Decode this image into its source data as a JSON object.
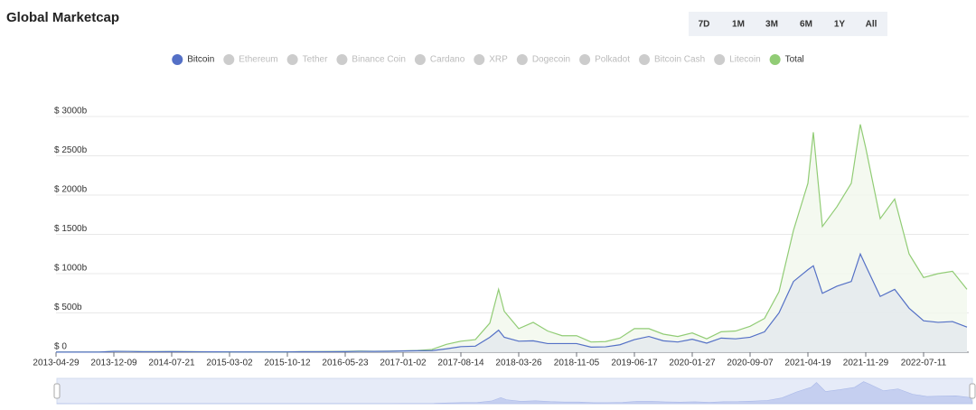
{
  "chart_data": {
    "type": "area",
    "title": "Global Marketcap",
    "range_buttons": [
      "7D",
      "1M",
      "3M",
      "6M",
      "1Y",
      "All"
    ],
    "x": [
      "2013-04-29",
      "2013-06-24",
      "2013-08-19",
      "2013-10-14",
      "2013-12-09",
      "2014-02-03",
      "2014-03-31",
      "2014-05-26",
      "2014-07-21",
      "2014-09-15",
      "2014-11-10",
      "2015-01-05",
      "2015-03-02",
      "2015-04-27",
      "2015-06-22",
      "2015-08-17",
      "2015-10-12",
      "2015-12-07",
      "2016-02-01",
      "2016-03-28",
      "2016-05-23",
      "2016-07-18",
      "2016-09-12",
      "2016-11-07",
      "2017-01-02",
      "2017-02-27",
      "2017-04-24",
      "2017-06-19",
      "2017-08-14",
      "2017-10-09",
      "2017-12-04",
      "2018-01-07",
      "2018-01-29",
      "2018-03-26",
      "2018-05-21",
      "2018-07-16",
      "2018-09-10",
      "2018-11-05",
      "2018-12-31",
      "2019-02-25",
      "2019-04-22",
      "2019-06-17",
      "2019-08-12",
      "2019-10-07",
      "2019-12-02",
      "2020-01-27",
      "2020-03-23",
      "2020-05-18",
      "2020-07-13",
      "2020-09-07",
      "2020-11-02",
      "2020-12-28",
      "2021-02-22",
      "2021-04-19",
      "2021-05-10",
      "2021-06-14",
      "2021-08-09",
      "2021-10-04",
      "2021-11-08",
      "2021-11-29",
      "2022-01-24",
      "2022-03-21",
      "2022-05-16",
      "2022-07-11",
      "2022-09-05",
      "2022-10-31",
      "2022-12-26"
    ],
    "series": [
      {
        "name": "Bitcoin",
        "color": "#5470c6",
        "fill": "#e3e8ee",
        "selected": true,
        "values": [
          1.3,
          1.2,
          1.2,
          1.7,
          10,
          9.5,
          5.5,
          6.5,
          7.5,
          6.5,
          5,
          3.9,
          3.5,
          3.2,
          3.5,
          3.8,
          3.7,
          5.8,
          5.7,
          6.5,
          7.5,
          10.5,
          9.7,
          11.5,
          16,
          19,
          20,
          43,
          71,
          77,
          190,
          280,
          190,
          140,
          145,
          110,
          110,
          110,
          65,
          68,
          95,
          160,
          200,
          145,
          130,
          165,
          115,
          180,
          170,
          190,
          260,
          500,
          900,
          1050,
          1100,
          750,
          840,
          900,
          1250,
          1100,
          710,
          800,
          560,
          400,
          380,
          390,
          320
        ]
      },
      {
        "name": "Ethereum",
        "color": "#cccccc",
        "selected": false
      },
      {
        "name": "Tether",
        "color": "#cccccc",
        "selected": false
      },
      {
        "name": "Binance Coin",
        "color": "#cccccc",
        "selected": false
      },
      {
        "name": "Cardano",
        "color": "#cccccc",
        "selected": false
      },
      {
        "name": "XRP",
        "color": "#cccccc",
        "selected": false
      },
      {
        "name": "Dogecoin",
        "color": "#cccccc",
        "selected": false
      },
      {
        "name": "Polkadot",
        "color": "#cccccc",
        "selected": false
      },
      {
        "name": "Bitcoin Cash",
        "color": "#cccccc",
        "selected": false
      },
      {
        "name": "Litecoin",
        "color": "#cccccc",
        "selected": false
      },
      {
        "name": "Total",
        "color": "#91cc75",
        "fill": "#f1f8ec",
        "selected": true,
        "values": [
          1.5,
          1.3,
          1.4,
          2.2,
          12,
          11,
          7.5,
          8,
          9,
          7.5,
          6,
          4.5,
          4,
          3.6,
          4,
          4.3,
          4.2,
          6.8,
          7.8,
          8.5,
          10,
          14,
          12.5,
          13.5,
          18,
          22,
          35,
          100,
          140,
          160,
          370,
          800,
          520,
          300,
          380,
          270,
          210,
          210,
          130,
          135,
          180,
          300,
          300,
          230,
          200,
          245,
          170,
          260,
          270,
          330,
          430,
          770,
          1550,
          2150,
          2800,
          1600,
          1850,
          2150,
          2900,
          2600,
          1700,
          1950,
          1250,
          950,
          1000,
          1030,
          800
        ]
      }
    ],
    "xlim": [
      "2013-04-29",
      "2023-01-02"
    ],
    "xticks": [
      "2013-04-29",
      "2013-12-09",
      "2014-07-21",
      "2015-03-02",
      "2015-10-12",
      "2016-05-23",
      "2017-01-02",
      "2017-08-14",
      "2018-03-26",
      "2018-11-05",
      "2019-06-17",
      "2020-01-27",
      "2020-09-07",
      "2021-04-19",
      "2021-11-29",
      "2022-07-11"
    ],
    "ylim": [
      0,
      3000
    ],
    "yticks": [
      {
        "value": 0,
        "label": "$ 0"
      },
      {
        "value": 500,
        "label": "$ 500b"
      },
      {
        "value": 1000,
        "label": "$ 1000b"
      },
      {
        "value": 1500,
        "label": "$ 1500b"
      },
      {
        "value": 2000,
        "label": "$ 2000b"
      },
      {
        "value": 2500,
        "label": "$ 2500b"
      },
      {
        "value": 3000,
        "label": "$ 3000b"
      }
    ],
    "grid": true
  }
}
